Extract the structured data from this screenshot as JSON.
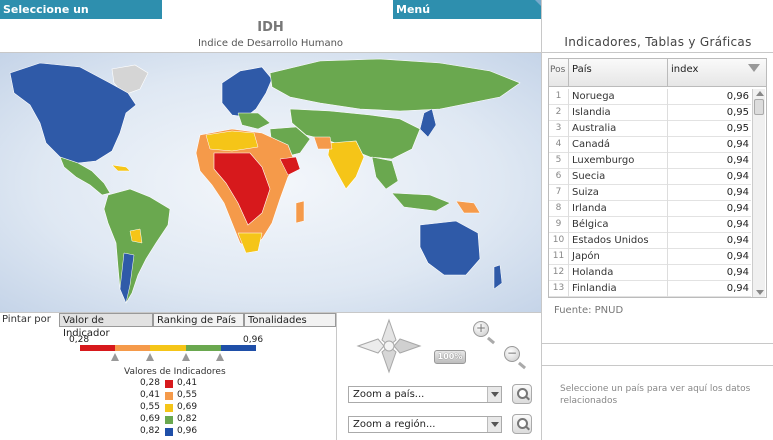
{
  "header": {
    "indicator_selector": "Seleccione un Indicador...",
    "menu": "Menú"
  },
  "map": {
    "title": "IDH",
    "subtitle": "Indice de Desarrollo Humano"
  },
  "controls": {
    "paint_by_label": "Pintar por",
    "tabs": [
      "Valor de Indicador",
      "Ranking de País",
      "Tonalidades"
    ],
    "active_tab": "Valor de Indicador",
    "scale_min": "0,28",
    "scale_max": "0,96",
    "scale_colors": [
      "#d7191c",
      "#f59a4a",
      "#f5c518",
      "#6aa84f",
      "#1f4fa8"
    ],
    "legend_title": "Valores de Indicadores",
    "legend": [
      {
        "from": "0,28",
        "to": "0,41",
        "color": "#d7191c"
      },
      {
        "from": "0,41",
        "to": "0,55",
        "color": "#f59a4a"
      },
      {
        "from": "0,55",
        "to": "0,69",
        "color": "#f5c518"
      },
      {
        "from": "0,69",
        "to": "0,82",
        "color": "#6aa84f"
      },
      {
        "from": "0,82",
        "to": "0,96",
        "color": "#1f4fa8"
      }
    ],
    "zoom_percent": "100%",
    "zoom_country_placeholder": "Zoom a país...",
    "zoom_region_placeholder": "Zoom a región..."
  },
  "panel": {
    "title": "Indicadores, Tablas y Gráficas",
    "columns": {
      "pos": "Pos",
      "country": "País",
      "index": "index"
    },
    "rows": [
      {
        "pos": "1",
        "country": "Noruega",
        "index": "0,96"
      },
      {
        "pos": "2",
        "country": "Islandia",
        "index": "0,95"
      },
      {
        "pos": "3",
        "country": "Australia",
        "index": "0,95"
      },
      {
        "pos": "4",
        "country": "Canadá",
        "index": "0,94"
      },
      {
        "pos": "5",
        "country": "Luxemburgo",
        "index": "0,94"
      },
      {
        "pos": "6",
        "country": "Suecia",
        "index": "0,94"
      },
      {
        "pos": "7",
        "country": "Suiza",
        "index": "0,94"
      },
      {
        "pos": "8",
        "country": "Irlanda",
        "index": "0,94"
      },
      {
        "pos": "9",
        "country": "Bélgica",
        "index": "0,94"
      },
      {
        "pos": "10",
        "country": "Estados Unidos",
        "index": "0,94"
      },
      {
        "pos": "11",
        "country": "Japón",
        "index": "0,94"
      },
      {
        "pos": "12",
        "country": "Holanda",
        "index": "0,94"
      },
      {
        "pos": "13",
        "country": "Finlandia",
        "index": "0,94"
      }
    ],
    "source": "Fuente: PNUD",
    "info": "Seleccione un país para ver aquí los datos relacionados"
  }
}
